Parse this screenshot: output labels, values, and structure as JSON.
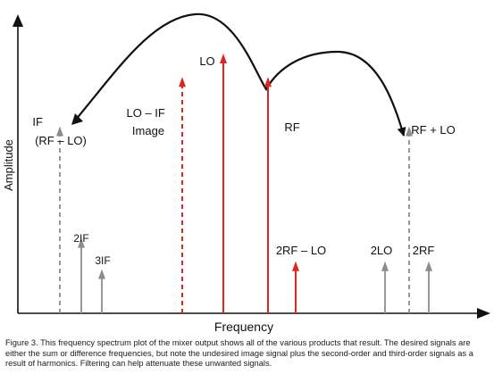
{
  "axes": {
    "y_label": "Amplitude",
    "x_label": "Frequency"
  },
  "signals": [
    {
      "id": "if",
      "label_lines": [
        "IF",
        "(RF – LO)"
      ],
      "level": 0.72,
      "style": "dashed",
      "color": "gray"
    },
    {
      "id": "2if",
      "label_lines": [
        "2IF"
      ],
      "level": 0.29,
      "style": "solid",
      "color": "gray"
    },
    {
      "id": "3if",
      "label_lines": [
        "3IF"
      ],
      "level": 0.17,
      "style": "solid",
      "color": "gray"
    },
    {
      "id": "image",
      "label_lines": [
        "LO – IF",
        "Image"
      ],
      "level": 0.91,
      "style": "dashed",
      "color": "red"
    },
    {
      "id": "lo",
      "label_lines": [
        "LO"
      ],
      "level": 1.0,
      "style": "solid",
      "color": "red"
    },
    {
      "id": "rf",
      "label_lines": [
        "RF"
      ],
      "level": 0.91,
      "style": "solid",
      "color": "red"
    },
    {
      "id": "2rf-lo",
      "label_lines": [
        "2RF – LO"
      ],
      "level": 0.2,
      "style": "solid",
      "color": "red"
    },
    {
      "id": "2lo",
      "label_lines": [
        "2LO"
      ],
      "level": 0.2,
      "style": "solid",
      "color": "gray"
    },
    {
      "id": "rf+lo",
      "label_lines": [
        "RF + LO"
      ],
      "level": 0.72,
      "style": "dashed",
      "color": "gray"
    },
    {
      "id": "2rf",
      "label_lines": [
        "2RF"
      ],
      "level": 0.2,
      "style": "solid",
      "color": "gray"
    }
  ],
  "colors": {
    "red": "#e02424",
    "gray": "#8c8c8c",
    "ink": "#111111"
  },
  "caption": "Figure 3. This frequency spectrum plot of the mixer output shows all of the various products that result. The desired signals are either the sum or difference frequencies, but note the undesired image signal plus the second-order and third-order signals as a result of harmonics. Filtering can help attenuate these unwanted signals."
}
